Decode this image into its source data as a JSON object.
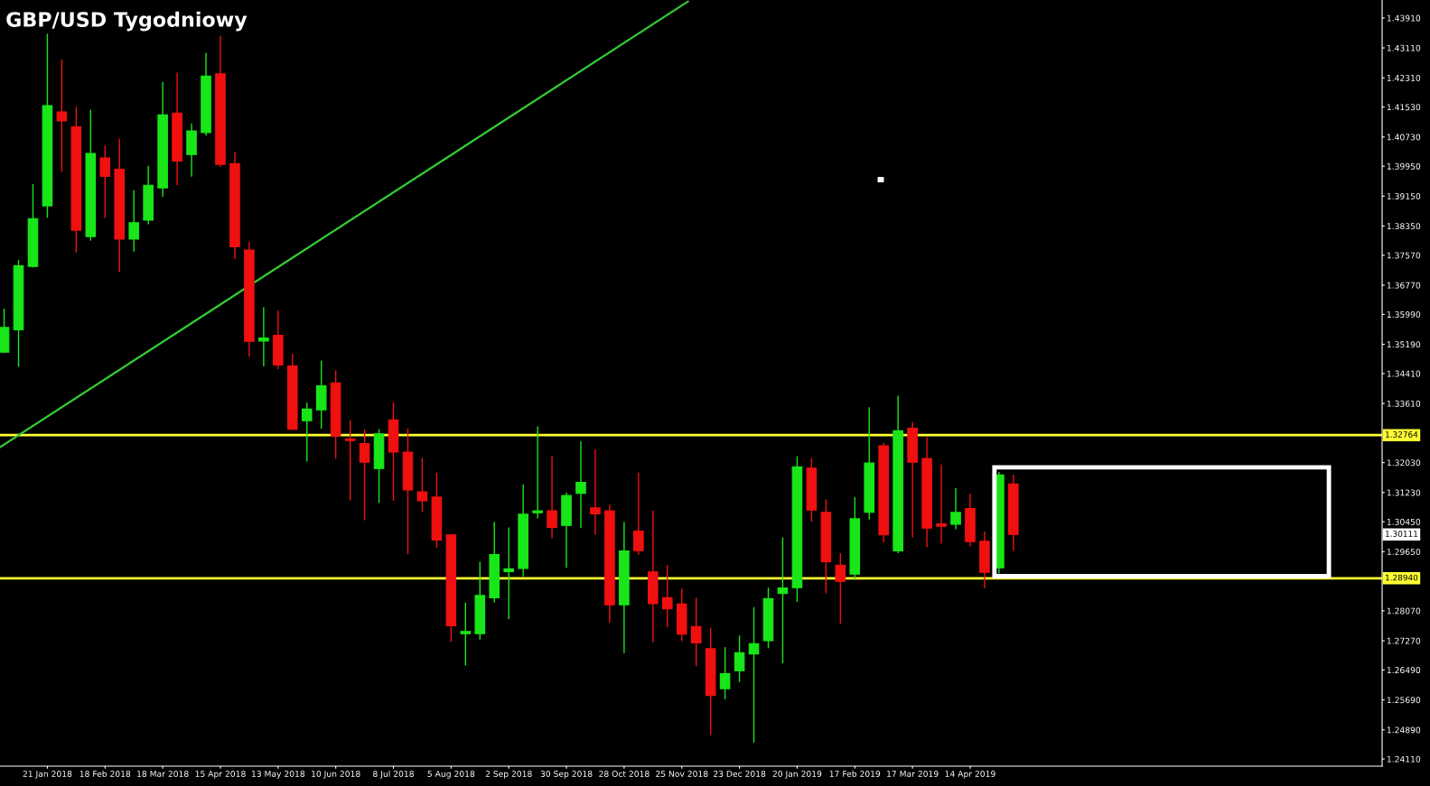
{
  "chart_data": {
    "type": "candlestick",
    "title": "GBP/USD Tygodniowy",
    "series": [
      {
        "type": "candlestick",
        "color": "#19e619",
        "x": [
          "2017-12-31",
          "2018-01-07",
          "2018-01-14",
          "2018-01-21",
          "2018-02-11",
          "2018-03-04",
          "2018-03-11",
          "2018-03-18",
          "2018-04-01",
          "2018-04-08",
          "2018-05-06",
          "2018-05-27",
          "2018-06-03",
          "2018-07-01",
          "2018-08-12",
          "2018-08-19",
          "2018-08-26",
          "2018-09-02",
          "2018-09-09",
          "2018-09-16",
          "2018-09-30",
          "2018-10-07",
          "2018-10-28",
          "2018-12-16",
          "2018-12-23",
          "2018-12-30",
          "2019-01-06",
          "2019-01-13",
          "2019-01-20",
          "2019-02-17",
          "2019-02-24",
          "2019-03-10",
          "2019-04-07",
          "2019-04-28"
        ],
        "ohlc": [
          [
            1.3498,
            1.3614,
            1.3496,
            1.3564
          ],
          [
            1.3558,
            1.3744,
            1.3459,
            1.3729
          ],
          [
            1.3727,
            1.3947,
            1.3724,
            1.3855
          ],
          [
            1.3889,
            1.4349,
            1.3857,
            1.4157
          ],
          [
            1.3807,
            1.4146,
            1.3796,
            1.4029
          ],
          [
            1.38,
            1.3931,
            1.3767,
            1.3844
          ],
          [
            1.3851,
            1.3996,
            1.384,
            1.3944
          ],
          [
            1.3937,
            1.422,
            1.3913,
            1.4132
          ],
          [
            1.4026,
            1.4109,
            1.3967,
            1.4089
          ],
          [
            1.4085,
            1.4298,
            1.4077,
            1.4236
          ],
          [
            1.3528,
            1.3618,
            1.346,
            1.3536
          ],
          [
            1.3315,
            1.3363,
            1.3206,
            1.3346
          ],
          [
            1.3344,
            1.3475,
            1.3294,
            1.3408
          ],
          [
            1.3187,
            1.3292,
            1.3095,
            1.328
          ],
          [
            1.2746,
            1.2829,
            1.2661,
            1.2752
          ],
          [
            1.2746,
            1.2938,
            1.273,
            1.2848
          ],
          [
            1.2842,
            1.3045,
            1.2829,
            1.2957
          ],
          [
            1.2912,
            1.303,
            1.2785,
            1.2919
          ],
          [
            1.292,
            1.3145,
            1.2899,
            1.3065
          ],
          [
            1.3069,
            1.33,
            1.3054,
            1.3074
          ],
          [
            1.3035,
            1.3123,
            1.2922,
            1.3115
          ],
          [
            1.3121,
            1.326,
            1.3028,
            1.315
          ],
          [
            1.2823,
            1.3044,
            1.2694,
            1.2967
          ],
          [
            1.2599,
            1.271,
            1.2571,
            1.2639
          ],
          [
            1.2647,
            1.2741,
            1.2617,
            1.2695
          ],
          [
            1.2692,
            1.2817,
            1.2455,
            1.2719
          ],
          [
            1.2727,
            1.2869,
            1.2707,
            1.284
          ],
          [
            1.2853,
            1.3003,
            1.2667,
            1.2868
          ],
          [
            1.2869,
            1.322,
            1.2831,
            1.3192
          ],
          [
            1.2905,
            1.3111,
            1.289,
            1.3053
          ],
          [
            1.307,
            1.3351,
            1.3051,
            1.3202
          ],
          [
            1.2967,
            1.3382,
            1.2961,
            1.3288
          ],
          [
            1.3038,
            1.3135,
            1.3025,
            1.307
          ],
          [
            1.2922,
            1.3178,
            1.2906,
            1.317
          ]
        ]
      },
      {
        "type": "candlestick",
        "color": "#f01010",
        "x": [
          "2018-01-28",
          "2018-02-04",
          "2018-02-18",
          "2018-02-25",
          "2018-03-25",
          "2018-04-15",
          "2018-04-22",
          "2018-04-29",
          "2018-05-13",
          "2018-05-20",
          "2018-06-10",
          "2018-06-17",
          "2018-06-24",
          "2018-07-08",
          "2018-07-15",
          "2018-07-22",
          "2018-07-29",
          "2018-08-05",
          "2018-09-23",
          "2018-10-14",
          "2018-10-21",
          "2018-11-04",
          "2018-11-11",
          "2018-11-18",
          "2018-11-25",
          "2018-12-02",
          "2018-12-09",
          "2019-01-27",
          "2019-02-03",
          "2019-02-10",
          "2019-03-03",
          "2019-03-17",
          "2019-03-24",
          "2019-03-31",
          "2019-04-14",
          "2019-04-21",
          "2019-05-05"
        ],
        "ohlc": [
          [
            1.414,
            1.428,
            1.398,
            1.4116
          ],
          [
            1.41,
            1.4153,
            1.3764,
            1.3824
          ],
          [
            1.4017,
            1.405,
            1.3857,
            1.3968
          ],
          [
            1.3987,
            1.4069,
            1.3712,
            1.38
          ],
          [
            1.4137,
            1.4245,
            1.3944,
            1.4009
          ],
          [
            1.4242,
            1.4343,
            1.3993,
            1.4
          ],
          [
            1.4002,
            1.4033,
            1.3747,
            1.378
          ],
          [
            1.3771,
            1.3793,
            1.3486,
            1.3527
          ],
          [
            1.3543,
            1.3609,
            1.3453,
            1.3464
          ],
          [
            1.3461,
            1.3493,
            1.329,
            1.3292
          ],
          [
            1.3416,
            1.3449,
            1.3213,
            1.3274
          ],
          [
            1.3266,
            1.3316,
            1.3102,
            1.3262
          ],
          [
            1.3254,
            1.3292,
            1.3049,
            1.3204
          ],
          [
            1.3317,
            1.3364,
            1.3101,
            1.3231
          ],
          [
            1.3231,
            1.3294,
            1.2958,
            1.313
          ],
          [
            1.3125,
            1.3215,
            1.3072,
            1.3101
          ],
          [
            1.3111,
            1.3176,
            1.2975,
            1.2996
          ],
          [
            1.301,
            1.3012,
            1.2724,
            1.2767
          ],
          [
            1.3074,
            1.322,
            1.3001,
            1.303
          ],
          [
            1.3082,
            1.3238,
            1.301,
            1.3066
          ],
          [
            1.3074,
            1.3091,
            1.2775,
            1.2823
          ],
          [
            1.302,
            1.3176,
            1.2957,
            1.2968
          ],
          [
            1.2911,
            1.3075,
            1.2723,
            1.2826
          ],
          [
            1.2842,
            1.2929,
            1.2764,
            1.2812
          ],
          [
            1.2825,
            1.2866,
            1.2726,
            1.2745
          ],
          [
            1.2765,
            1.2842,
            1.2659,
            1.2721
          ],
          [
            1.2706,
            1.2762,
            1.2475,
            1.2581
          ],
          [
            1.3188,
            1.3214,
            1.3045,
            1.3076
          ],
          [
            1.307,
            1.3105,
            1.2854,
            1.2938
          ],
          [
            1.2929,
            1.2961,
            1.2773,
            1.2886
          ],
          [
            1.3248,
            1.3256,
            1.299,
            1.301
          ],
          [
            1.3295,
            1.3312,
            1.3003,
            1.3204
          ],
          [
            1.3214,
            1.3271,
            1.2977,
            1.3028
          ],
          [
            1.3039,
            1.3198,
            1.2987,
            1.3033
          ],
          [
            1.308,
            1.312,
            1.2979,
            1.2992
          ],
          [
            1.2993,
            1.3019,
            1.2867,
            1.291
          ],
          [
            1.3146,
            1.3171,
            1.2967,
            1.30111
          ]
        ]
      },
      {
        "type": "line",
        "color": "#33cc33",
        "x": [
          "2017-12-29",
          "2018-11-28"
        ],
        "values": [
          1.3244,
          1.4435
        ]
      }
    ],
    "xlim": [
      "2017-12-29",
      "2019-10-31"
    ],
    "xticks": [
      {
        "value": "2018-01-21",
        "label": "21 Jan 2018"
      },
      {
        "value": "2018-02-18",
        "label": "18 Feb 2018"
      },
      {
        "value": "2018-03-18",
        "label": "18 Mar 2018"
      },
      {
        "value": "2018-04-15",
        "label": "15 Apr 2018"
      },
      {
        "value": "2018-05-13",
        "label": "13 May 2018"
      },
      {
        "value": "2018-06-10",
        "label": "10 Jun 2018"
      },
      {
        "value": "2018-07-08",
        "label": "8 Jul 2018"
      },
      {
        "value": "2018-08-05",
        "label": "5 Aug 2018"
      },
      {
        "value": "2018-09-02",
        "label": "2 Sep 2018"
      },
      {
        "value": "2018-09-30",
        "label": "30 Sep 2018"
      },
      {
        "value": "2018-10-28",
        "label": "28 Oct 2018"
      },
      {
        "value": "2018-11-25",
        "label": "25 Nov 2018"
      },
      {
        "value": "2018-12-23",
        "label": "23 Dec 2018"
      },
      {
        "value": "2019-01-20",
        "label": "20 Jan 2019"
      },
      {
        "value": "2019-02-17",
        "label": "17 Feb 2019"
      },
      {
        "value": "2019-03-17",
        "label": "17 Mar 2019"
      },
      {
        "value": "2019-04-14",
        "label": "14 Apr 2019"
      }
    ],
    "ylim": [
      1.2392,
      1.4439
    ],
    "yticks": [
      {
        "value": 1.4391,
        "label": "1.43910"
      },
      {
        "value": 1.4311,
        "label": "1.43110"
      },
      {
        "value": 1.4231,
        "label": "1.42310"
      },
      {
        "value": 1.4153,
        "label": "1.41530"
      },
      {
        "value": 1.4073,
        "label": "1.40730"
      },
      {
        "value": 1.3995,
        "label": "1.39950"
      },
      {
        "value": 1.3915,
        "label": "1.39150"
      },
      {
        "value": 1.3835,
        "label": "1.38350"
      },
      {
        "value": 1.3757,
        "label": "1.37570"
      },
      {
        "value": 1.3677,
        "label": "1.36770"
      },
      {
        "value": 1.3599,
        "label": "1.35990"
      },
      {
        "value": 1.3519,
        "label": "1.35190"
      },
      {
        "value": 1.3441,
        "label": "1.34410"
      },
      {
        "value": 1.3361,
        "label": "1.33610"
      },
      {
        "value": 1.3203,
        "label": "1.32030"
      },
      {
        "value": 1.3123,
        "label": "1.31230"
      },
      {
        "value": 1.3045,
        "label": "1.30450"
      },
      {
        "value": 1.2965,
        "label": "1.29650"
      },
      {
        "value": 1.2807,
        "label": "1.28070"
      },
      {
        "value": 1.2727,
        "label": "1.27270"
      },
      {
        "value": 1.2649,
        "label": "1.26490"
      },
      {
        "value": 1.2569,
        "label": "1.25690"
      },
      {
        "value": 1.2489,
        "label": "1.24890"
      },
      {
        "value": 1.2411,
        "label": "1.24110"
      }
    ],
    "ref_lines": [
      {
        "axis": "y",
        "value": 1.32764,
        "label": "1.32764",
        "color": "#ffff33"
      },
      {
        "axis": "y",
        "value": 1.2894,
        "label": "1.28940",
        "color": "#ffff33"
      }
    ],
    "annotations": [
      "1.30111"
    ],
    "grid": false,
    "legend": false
  }
}
